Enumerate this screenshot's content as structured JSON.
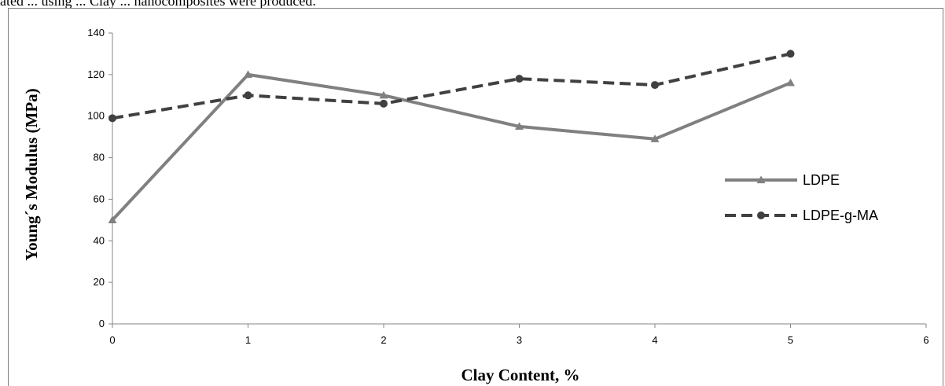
{
  "header_text": "ated ... using ... Clay ... nanocomposites were produced.",
  "chart_data": {
    "type": "line",
    "title": "",
    "xlabel": "Clay Content, %",
    "ylabel": "Young´s Modulus (MPa)",
    "xlim": [
      0,
      6
    ],
    "ylim": [
      0,
      140
    ],
    "x_ticks": [
      "0",
      "1",
      "2",
      "3",
      "4",
      "5",
      "6"
    ],
    "y_ticks": [
      "0",
      "20",
      "40",
      "60",
      "80",
      "100",
      "120",
      "140"
    ],
    "grid": false,
    "legend_position": "right",
    "series": [
      {
        "name": "LDPE",
        "color": "#808080",
        "style": "solid",
        "marker": "triangle",
        "x": [
          0,
          1,
          2,
          3,
          4,
          5
        ],
        "values": [
          50,
          120,
          110,
          95,
          89,
          116
        ]
      },
      {
        "name": "LDPE-g-MA",
        "color": "#404040",
        "style": "dashed",
        "marker": "circle",
        "x": [
          0,
          1,
          2,
          3,
          4,
          5
        ],
        "values": [
          99,
          110,
          106,
          118,
          115,
          130
        ]
      }
    ]
  }
}
